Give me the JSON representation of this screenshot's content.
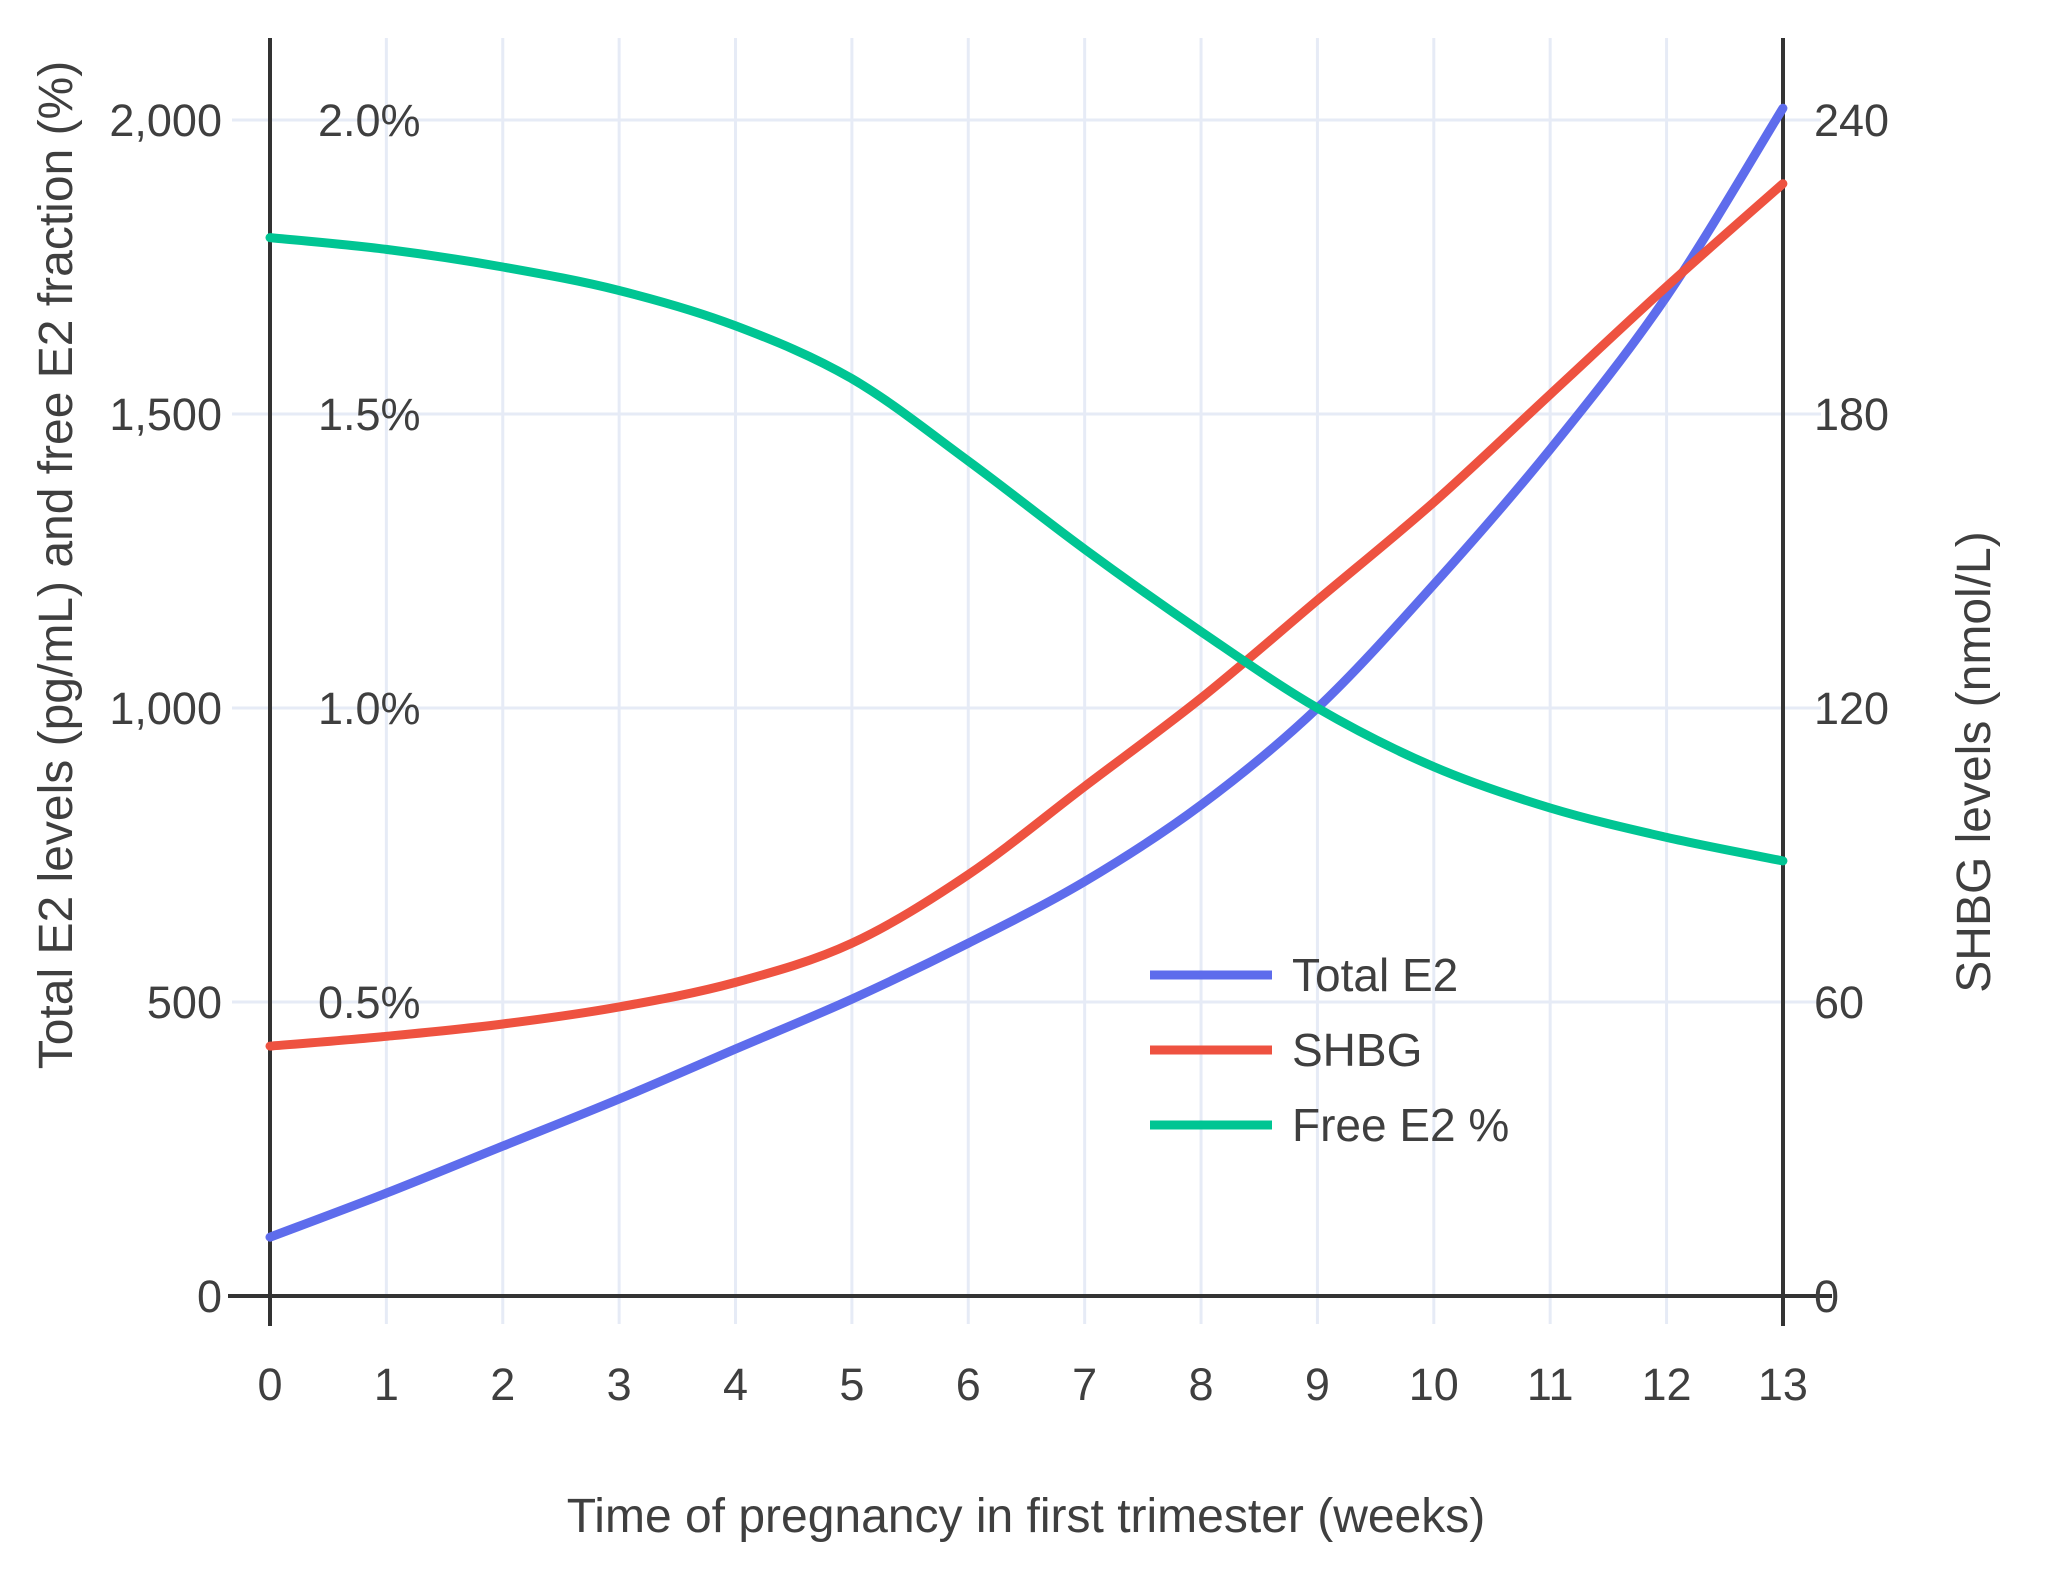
{
  "chart_data": {
    "type": "line",
    "xlabel": "Time of pregnancy in first trimester (weeks)",
    "ylabel_left": "Total E2 levels (pg/mL) and free E2 fraction (%)",
    "ylabel_right": "SHBG levels (nmol/L)",
    "x": [
      0,
      1,
      2,
      3,
      4,
      5,
      6,
      7,
      8,
      9,
      10,
      11,
      12,
      13
    ],
    "x_tick_labels": [
      "0",
      "1",
      "2",
      "3",
      "4",
      "5",
      "6",
      "7",
      "8",
      "9",
      "10",
      "11",
      "12",
      "13"
    ],
    "left_axis": {
      "range": [
        0,
        2100
      ],
      "ticks": [
        0,
        500,
        1000,
        1500,
        2000
      ],
      "tick_labels": [
        "0",
        "500",
        "1,000",
        "1,500",
        "2,000"
      ]
    },
    "left_axis_percent_labels": {
      "at_values": [
        500,
        1000,
        1500,
        2000
      ],
      "labels": [
        "0.5%",
        "1.0%",
        "1.5%",
        "2.0%"
      ]
    },
    "right_axis": {
      "range": [
        0,
        252
      ],
      "ticks": [
        0,
        60,
        120,
        180,
        240
      ],
      "tick_labels": [
        "0",
        "60",
        "120",
        "180",
        "240"
      ]
    },
    "series": [
      {
        "name": "Total E2",
        "axis": "left",
        "units": "pg/mL",
        "color": "#5E6CEC",
        "values": [
          100,
          175,
          255,
          335,
          420,
          505,
          600,
          705,
          835,
          1000,
          1210,
          1440,
          1700,
          2020
        ]
      },
      {
        "name": "SHBG",
        "axis": "right",
        "units": "nmol/L",
        "color": "#EE5240",
        "values": [
          51,
          53,
          55.5,
          59,
          64,
          72,
          86,
          104,
          122,
          142,
          162,
          184,
          206,
          227
        ]
      },
      {
        "name": "Free E2 %",
        "axis": "left-percent",
        "units": "%",
        "color": "#00C593",
        "values": [
          1.8,
          1.78,
          1.75,
          1.71,
          1.65,
          1.56,
          1.42,
          1.27,
          1.13,
          1.0,
          0.9,
          0.83,
          0.78,
          0.74
        ]
      }
    ],
    "legend": {
      "position": "inside-middle-right",
      "entries": [
        "Total E2",
        "SHBG",
        "Free E2 %"
      ]
    },
    "grid": true,
    "colors": {
      "grid": "#E6EBF6",
      "axis_line": "#333333",
      "text": "#3F3F3F",
      "background": "#FFFFFF"
    }
  }
}
